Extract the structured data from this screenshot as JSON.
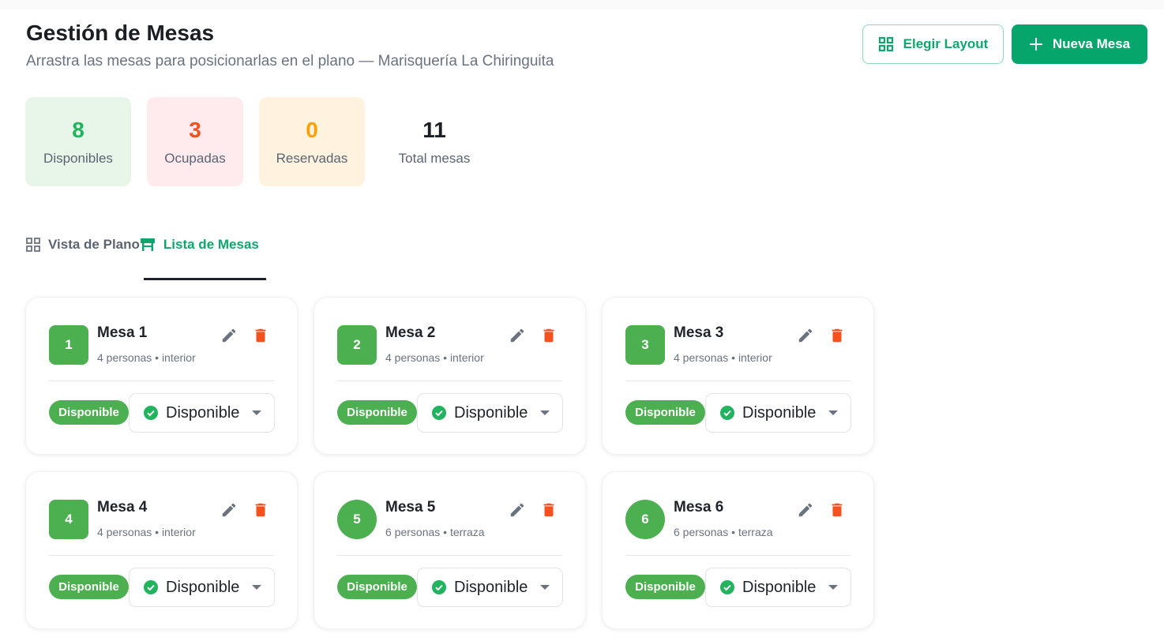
{
  "header": {
    "title": "Gestión de Mesas",
    "subtitle": "Arrastra las mesas para posicionarlas en el plano — Marisquería La Chiringuita",
    "layout_button": "Elegir Layout",
    "new_button": "Nueva Mesa"
  },
  "stats": [
    {
      "value": "8",
      "label": "Disponibles",
      "color": "#22b35e",
      "bg": "#e8f5e9"
    },
    {
      "value": "3",
      "label": "Ocupadas",
      "color": "#f4511e",
      "bg": "#ffebee"
    },
    {
      "value": "0",
      "label": "Reservadas",
      "color": "#ffa000",
      "bg": "#fff3e0"
    },
    {
      "value": "11",
      "label": "Total mesas",
      "color": "#1b1f24",
      "bg": "#ffffff"
    }
  ],
  "tabs": [
    {
      "label": "Vista de Plano",
      "icon": "grid-icon",
      "active": false
    },
    {
      "label": "Lista de Mesas",
      "icon": "table-icon",
      "active": true
    }
  ],
  "colors": {
    "accent": "#05a56c",
    "available": "#4caf50",
    "delete": "#f4511e"
  },
  "tables": [
    {
      "number": "1",
      "name": "Mesa 1",
      "info": "4 personas • interior",
      "shape": "square",
      "status": "Disponible",
      "select": "Disponible"
    },
    {
      "number": "2",
      "name": "Mesa 2",
      "info": "4 personas • interior",
      "shape": "square",
      "status": "Disponible",
      "select": "Disponible"
    },
    {
      "number": "3",
      "name": "Mesa 3",
      "info": "4 personas • interior",
      "shape": "square",
      "status": "Disponible",
      "select": "Disponible"
    },
    {
      "number": "4",
      "name": "Mesa 4",
      "info": "4 personas • interior",
      "shape": "square",
      "status": "Disponible",
      "select": "Disponible"
    },
    {
      "number": "5",
      "name": "Mesa 5",
      "info": "6 personas • terraza",
      "shape": "round",
      "status": "Disponible",
      "select": "Disponible"
    },
    {
      "number": "6",
      "name": "Mesa 6",
      "info": "6 personas • terraza",
      "shape": "round",
      "status": "Disponible",
      "select": "Disponible"
    }
  ]
}
